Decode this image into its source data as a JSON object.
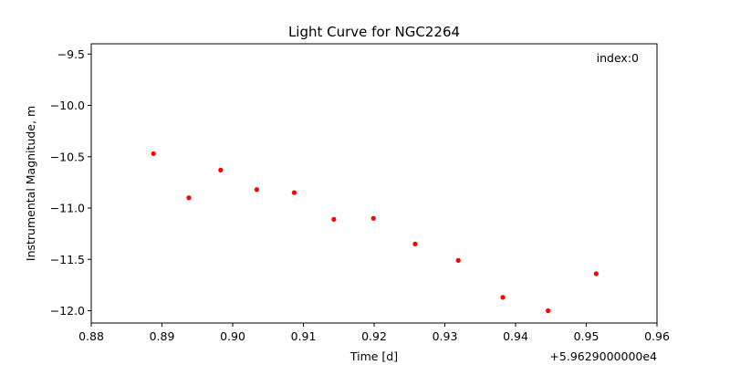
{
  "chart_data": {
    "type": "scatter",
    "title": "Light Curve for NGC2264",
    "xlabel": "Time [d]",
    "ylabel": "Instrumental Magnitude, m",
    "annotation": "index:0",
    "x_offset_label": "+5.9629000000e4",
    "xlim": [
      0.88,
      0.96
    ],
    "ylim": [
      -9.4,
      -12.12
    ],
    "y_inverted": true,
    "grid": false,
    "x_ticks": [
      0.88,
      0.89,
      0.9,
      0.91,
      0.92,
      0.93,
      0.94,
      0.95,
      0.96
    ],
    "x_tick_labels": [
      "0.88",
      "0.89",
      "0.90",
      "0.91",
      "0.92",
      "0.93",
      "0.94",
      "0.95",
      "0.96"
    ],
    "y_ticks": [
      -9.5,
      -10.0,
      -10.5,
      -11.0,
      -11.5,
      -12.0
    ],
    "y_tick_labels": [
      "−9.5",
      "−10.0",
      "−10.5",
      "−11.0",
      "−11.5",
      "−12.0"
    ],
    "marker_color": "#ff0000",
    "x": [
      0.8888,
      0.8938,
      0.8983,
      0.9034,
      0.9087,
      0.9143,
      0.9199,
      0.9258,
      0.9319,
      0.9382,
      0.9446,
      0.9514
    ],
    "y": [
      -10.47,
      -10.9,
      -10.63,
      -10.82,
      -10.85,
      -11.11,
      -11.1,
      -11.35,
      -11.51,
      -11.87,
      -12.0,
      -11.64
    ]
  }
}
